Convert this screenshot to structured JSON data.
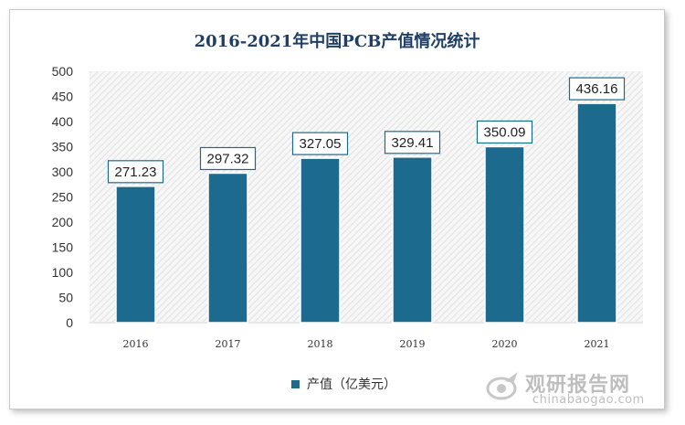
{
  "title": "2016-2021年中国PCB产值情况统计",
  "legend": {
    "label": "产值（亿美元）"
  },
  "watermark": {
    "name": "观研报告网",
    "url": "chinabaogao.com"
  },
  "colors": {
    "bar": "#1c6b8e",
    "title": "#1f3f66"
  },
  "chart_data": {
    "type": "bar",
    "title": "2016-2021年中国PCB产值情况统计",
    "categories": [
      "2016",
      "2017",
      "2018",
      "2019",
      "2020",
      "2021"
    ],
    "series": [
      {
        "name": "产值（亿美元）",
        "values": [
          271.23,
          297.32,
          327.05,
          329.41,
          350.09,
          436.16
        ]
      }
    ],
    "data_labels": [
      "271.23",
      "297.32",
      "327.05",
      "329.41",
      "350.09",
      "436.16"
    ],
    "yticks": [
      "0",
      "50",
      "100",
      "150",
      "200",
      "250",
      "300",
      "350",
      "400",
      "450",
      "500"
    ],
    "ylim": [
      0,
      500
    ],
    "legend_position": "bottom",
    "grid": false
  }
}
